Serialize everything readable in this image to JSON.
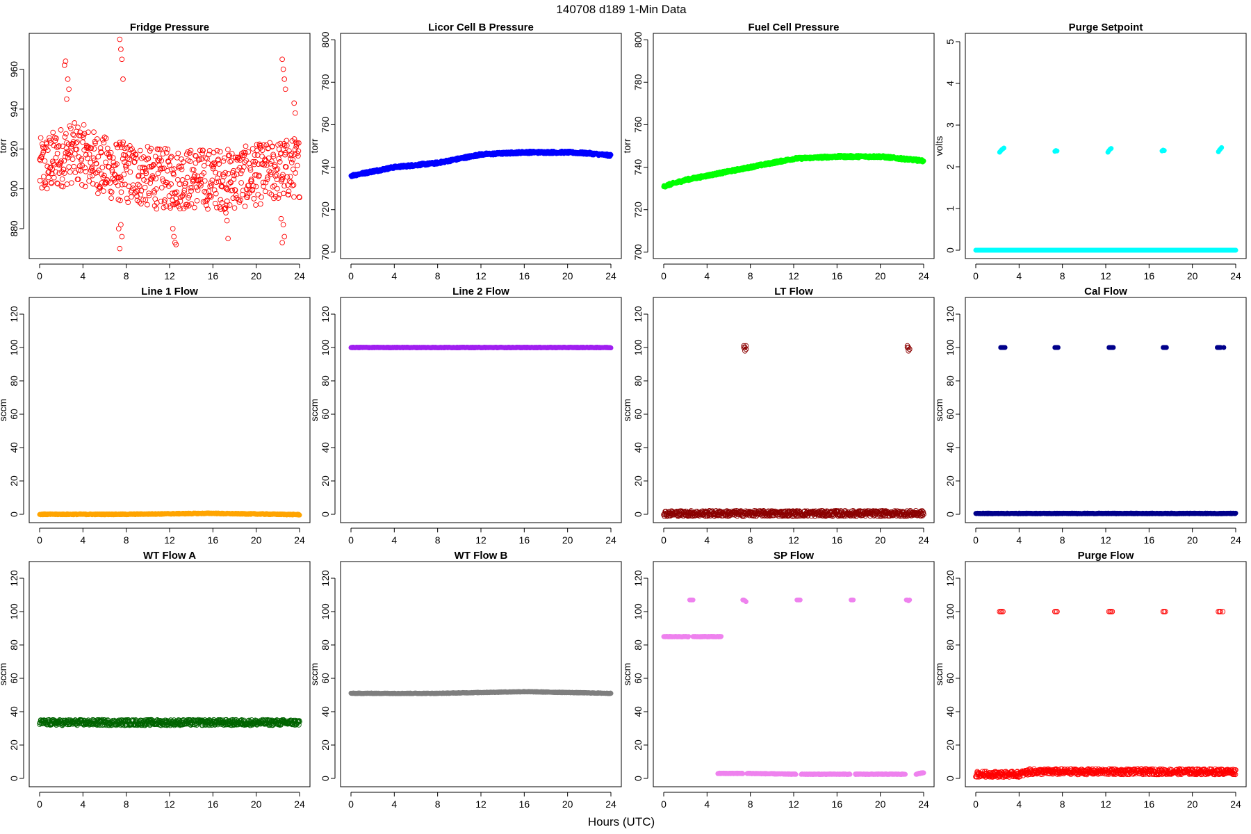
{
  "figure": {
    "title": "140708   d189   1-Min Data",
    "xlabel": "Hours (UTC)"
  },
  "chart_data": [
    {
      "type": "scatter",
      "title": "Fridge Pressure",
      "xlabel": "",
      "ylabel": "torr",
      "xlim": [
        0,
        24
      ],
      "ylim": [
        865,
        978
      ],
      "xticks": [
        0,
        4,
        8,
        12,
        16,
        20,
        24
      ],
      "yticks": [
        880,
        900,
        920,
        940,
        960
      ],
      "color": "#ff0000",
      "marker": "open-circle",
      "series": [
        {
          "kind": "noisy",
          "x": [
            0,
            1,
            2,
            3,
            4,
            5,
            6,
            7,
            8,
            9,
            10,
            11,
            12,
            13,
            14,
            15,
            16,
            17,
            18,
            19,
            20,
            21,
            22,
            23,
            24
          ],
          "y": [
            910,
            913,
            916,
            918,
            917,
            914,
            911,
            909,
            908,
            907,
            906,
            905,
            905,
            905,
            905,
            905,
            905,
            905,
            905,
            906,
            907,
            908,
            909,
            910,
            911
          ],
          "spread": 11
        },
        {
          "kind": "points",
          "x": [
            2.3,
            2.4,
            2.6,
            2.7,
            2.5,
            7.4,
            7.5,
            7.6,
            7.7,
            7.5,
            7.6,
            7.3,
            7.4,
            12.3,
            12.4,
            12.5,
            12.6,
            17.2,
            17.3,
            17.4,
            22.4,
            22.5,
            22.6,
            22.7,
            22.5,
            22.6,
            22.4,
            22.3,
            23.5,
            23.6
          ],
          "y": [
            962,
            964,
            955,
            950,
            945,
            975,
            970,
            965,
            955,
            882,
            876,
            880,
            870,
            880,
            876,
            873,
            872,
            888,
            884,
            875,
            965,
            960,
            955,
            950,
            882,
            876,
            873,
            885,
            943,
            938
          ]
        }
      ]
    },
    {
      "type": "scatter",
      "title": "Licor Cell B Pressure",
      "xlabel": "",
      "ylabel": "torr",
      "xlim": [
        0,
        24
      ],
      "ylim": [
        697,
        803
      ],
      "xticks": [
        0,
        4,
        8,
        12,
        16,
        20,
        24
      ],
      "yticks": [
        700,
        720,
        740,
        760,
        780,
        800
      ],
      "color": "#0000ff",
      "marker": "filled",
      "series": [
        {
          "kind": "line",
          "x": [
            0,
            2,
            4,
            6,
            8,
            10,
            12,
            14,
            16,
            18,
            20,
            22,
            23,
            24
          ],
          "y": [
            736,
            738,
            740,
            741,
            742,
            744,
            746,
            746.5,
            747,
            747,
            747,
            746.5,
            746,
            745.5
          ],
          "spread": 0.6
        }
      ]
    },
    {
      "type": "scatter",
      "title": "Fuel Cell Pressure",
      "xlabel": "",
      "ylabel": "torr",
      "xlim": [
        0,
        24
      ],
      "ylim": [
        697,
        803
      ],
      "xticks": [
        0,
        4,
        8,
        12,
        16,
        20,
        24
      ],
      "yticks": [
        700,
        720,
        740,
        760,
        780,
        800
      ],
      "color": "#00ff00",
      "marker": "filled",
      "series": [
        {
          "kind": "line",
          "x": [
            0,
            2,
            4,
            6,
            8,
            10,
            12,
            14,
            16,
            18,
            20,
            22,
            23,
            24
          ],
          "y": [
            731,
            734,
            736,
            738,
            740,
            742,
            744,
            744.5,
            745,
            745,
            745,
            744,
            743.5,
            743
          ],
          "spread": 0.6
        }
      ]
    },
    {
      "type": "scatter",
      "title": "Purge Setpoint",
      "xlabel": "",
      "ylabel": "volts",
      "xlim": [
        0,
        24
      ],
      "ylim": [
        -0.2,
        5.2
      ],
      "xticks": [
        0,
        4,
        8,
        12,
        16,
        20,
        24
      ],
      "yticks": [
        0,
        1,
        2,
        3,
        4,
        5
      ],
      "color": "#00ffff",
      "marker": "filled",
      "series": [
        {
          "kind": "line",
          "x": [
            0,
            24
          ],
          "y": [
            0,
            0
          ],
          "spread": 0
        },
        {
          "kind": "points",
          "x": [
            2.2,
            2.3,
            2.4,
            2.5,
            2.6,
            7.3,
            7.4,
            7.5,
            12.2,
            12.3,
            12.4,
            12.5,
            17.2,
            17.3,
            17.4,
            22.4,
            22.5,
            22.6,
            22.7
          ],
          "y": [
            2.35,
            2.38,
            2.41,
            2.43,
            2.45,
            2.37,
            2.39,
            2.38,
            2.35,
            2.39,
            2.42,
            2.44,
            2.38,
            2.4,
            2.39,
            2.36,
            2.4,
            2.43,
            2.46
          ]
        }
      ]
    },
    {
      "type": "scatter",
      "title": "Line 1 Flow",
      "xlabel": "",
      "ylabel": "sccm",
      "xlim": [
        0,
        24
      ],
      "ylim": [
        -5,
        130
      ],
      "xticks": [
        0,
        4,
        8,
        12,
        16,
        20,
        24
      ],
      "yticks": [
        0,
        20,
        40,
        60,
        80,
        100,
        120
      ],
      "color": "#ffa500",
      "marker": "filled",
      "series": [
        {
          "kind": "line",
          "x": [
            0,
            8,
            12,
            16,
            17,
            20,
            24
          ],
          "y": [
            0,
            0,
            0.3,
            0.6,
            0.4,
            0.2,
            -0.2
          ],
          "spread": 0.3
        }
      ]
    },
    {
      "type": "scatter",
      "title": "Line 2 Flow",
      "xlabel": "",
      "ylabel": "sccm",
      "xlim": [
        0,
        24
      ],
      "ylim": [
        -5,
        130
      ],
      "xticks": [
        0,
        4,
        8,
        12,
        16,
        20,
        24
      ],
      "yticks": [
        0,
        20,
        40,
        60,
        80,
        100,
        120
      ],
      "color": "#a020f0",
      "marker": "filled",
      "series": [
        {
          "kind": "line",
          "x": [
            0,
            24
          ],
          "y": [
            100,
            100
          ],
          "spread": 0.2
        }
      ]
    },
    {
      "type": "scatter",
      "title": "LT Flow",
      "xlabel": "",
      "ylabel": "sccm",
      "xlim": [
        0,
        24
      ],
      "ylim": [
        -5,
        130
      ],
      "xticks": [
        0,
        4,
        8,
        12,
        16,
        20,
        24
      ],
      "yticks": [
        0,
        20,
        40,
        60,
        80,
        100,
        120
      ],
      "color": "#8b0000",
      "marker": "open-circle",
      "series": [
        {
          "kind": "noisy",
          "x": [
            0,
            24
          ],
          "y": [
            0.5,
            0.5
          ],
          "spread": 1.2
        },
        {
          "kind": "points",
          "x": [
            7.4,
            7.5,
            7.6,
            7.5,
            7.4,
            7.6,
            22.5,
            22.6,
            22.7,
            22.6,
            22.5,
            22.7
          ],
          "y": [
            101,
            100,
            99,
            98,
            100,
            101,
            101,
            100,
            99,
            98,
            100,
            99
          ]
        }
      ]
    },
    {
      "type": "scatter",
      "title": "Cal Flow",
      "xlabel": "",
      "ylabel": "sccm",
      "xlim": [
        0,
        24
      ],
      "ylim": [
        -5,
        130
      ],
      "xticks": [
        0,
        4,
        8,
        12,
        16,
        20,
        24
      ],
      "yticks": [
        0,
        20,
        40,
        60,
        80,
        100,
        120
      ],
      "color": "#00008b",
      "marker": "filled",
      "series": [
        {
          "kind": "line",
          "x": [
            0,
            24
          ],
          "y": [
            0.5,
            0.5
          ],
          "spread": 0.2
        },
        {
          "kind": "points",
          "x": [
            2.3,
            2.4,
            2.5,
            2.6,
            2.7,
            7.3,
            7.4,
            7.5,
            7.6,
            12.3,
            12.4,
            12.5,
            12.6,
            12.7,
            17.3,
            17.4,
            17.5,
            17.6,
            22.3,
            22.4,
            22.5,
            22.6,
            22.9
          ],
          "y": [
            100,
            100,
            100,
            100,
            100,
            100,
            100,
            100,
            100,
            100,
            100,
            100,
            100,
            100,
            100,
            100,
            100,
            100,
            100,
            100,
            100,
            100,
            100
          ]
        }
      ]
    },
    {
      "type": "scatter",
      "title": "WT Flow A",
      "xlabel": "",
      "ylabel": "sccm",
      "xlim": [
        0,
        24
      ],
      "ylim": [
        -5,
        130
      ],
      "xticks": [
        0,
        4,
        8,
        12,
        16,
        20,
        24
      ],
      "yticks": [
        0,
        20,
        40,
        60,
        80,
        100,
        120
      ],
      "color": "#006400",
      "marker": "open-circle",
      "series": [
        {
          "kind": "noisy",
          "x": [
            0,
            24
          ],
          "y": [
            33.5,
            33.5
          ],
          "spread": 1.2
        }
      ]
    },
    {
      "type": "scatter",
      "title": "WT Flow B",
      "xlabel": "",
      "ylabel": "sccm",
      "xlim": [
        0,
        24
      ],
      "ylim": [
        -5,
        130
      ],
      "xticks": [
        0,
        4,
        8,
        12,
        16,
        20,
        24
      ],
      "yticks": [
        0,
        20,
        40,
        60,
        80,
        100,
        120
      ],
      "color": "#7f7f7f",
      "marker": "filled",
      "series": [
        {
          "kind": "line",
          "x": [
            0,
            8,
            12,
            16,
            20,
            24
          ],
          "y": [
            51,
            51,
            51.5,
            52,
            51.5,
            51
          ],
          "spread": 0.2
        }
      ]
    },
    {
      "type": "scatter",
      "title": "SP Flow",
      "xlabel": "",
      "ylabel": "sccm",
      "xlim": [
        0,
        24
      ],
      "ylim": [
        -5,
        130
      ],
      "xticks": [
        0,
        4,
        8,
        12,
        16,
        20,
        24
      ],
      "yticks": [
        0,
        20,
        40,
        60,
        80,
        100,
        120
      ],
      "color": "#ee82ee",
      "marker": "filled",
      "series": [
        {
          "kind": "segment",
          "x": [
            0,
            2.3
          ],
          "y": [
            85,
            85
          ],
          "spread": 0.2
        },
        {
          "kind": "segment",
          "x": [
            2.7,
            5.3
          ],
          "y": [
            85,
            85
          ],
          "spread": 0.2
        },
        {
          "kind": "segment",
          "x": [
            5.0,
            7.3
          ],
          "y": [
            3,
            3
          ],
          "spread": 0.2
        },
        {
          "kind": "segment",
          "x": [
            7.7,
            12.2
          ],
          "y": [
            3,
            2.5
          ],
          "spread": 0.2
        },
        {
          "kind": "segment",
          "x": [
            12.7,
            17.2
          ],
          "y": [
            2.5,
            2.5
          ],
          "spread": 0.2
        },
        {
          "kind": "segment",
          "x": [
            17.7,
            22.3
          ],
          "y": [
            2.5,
            2.5
          ],
          "spread": 0.2
        },
        {
          "kind": "segment",
          "x": [
            23.3,
            24
          ],
          "y": [
            2.5,
            3.5
          ],
          "spread": 0.2
        },
        {
          "kind": "points",
          "x": [
            2.4,
            2.5,
            2.6,
            2.7,
            7.3,
            7.4,
            7.5,
            7.6,
            12.3,
            12.4,
            12.5,
            12.6,
            17.3,
            17.4,
            17.5,
            22.4,
            22.5,
            22.6,
            22.7
          ],
          "y": [
            107,
            107,
            107,
            107,
            107,
            107,
            106.5,
            106,
            107,
            107,
            107,
            107,
            107,
            107,
            107,
            107,
            107,
            106.5,
            107
          ]
        }
      ]
    },
    {
      "type": "scatter",
      "title": "Purge Flow",
      "xlabel": "",
      "ylabel": "sccm",
      "xlim": [
        0,
        24
      ],
      "ylim": [
        -5,
        130
      ],
      "xticks": [
        0,
        4,
        8,
        12,
        16,
        20,
        24
      ],
      "yticks": [
        0,
        20,
        40,
        60,
        80,
        100,
        120
      ],
      "color": "#ff0000",
      "marker": "open-circle",
      "series": [
        {
          "kind": "noisy",
          "x": [
            0,
            4,
            5,
            8,
            12,
            16,
            20,
            24
          ],
          "y": [
            2.5,
            2.5,
            4,
            4,
            4,
            4,
            4,
            4
          ],
          "spread": 1.2
        },
        {
          "kind": "points",
          "x": [
            2.2,
            2.3,
            2.4,
            2.5,
            7.3,
            7.4,
            7.5,
            12.3,
            12.4,
            12.5,
            12.6,
            17.3,
            17.4,
            17.5,
            22.4,
            22.5,
            22.6,
            22.8
          ],
          "y": [
            100,
            100,
            100,
            100,
            100,
            100,
            100,
            100,
            100,
            100,
            100,
            100,
            100,
            100,
            100,
            100,
            100,
            100
          ]
        }
      ]
    }
  ]
}
